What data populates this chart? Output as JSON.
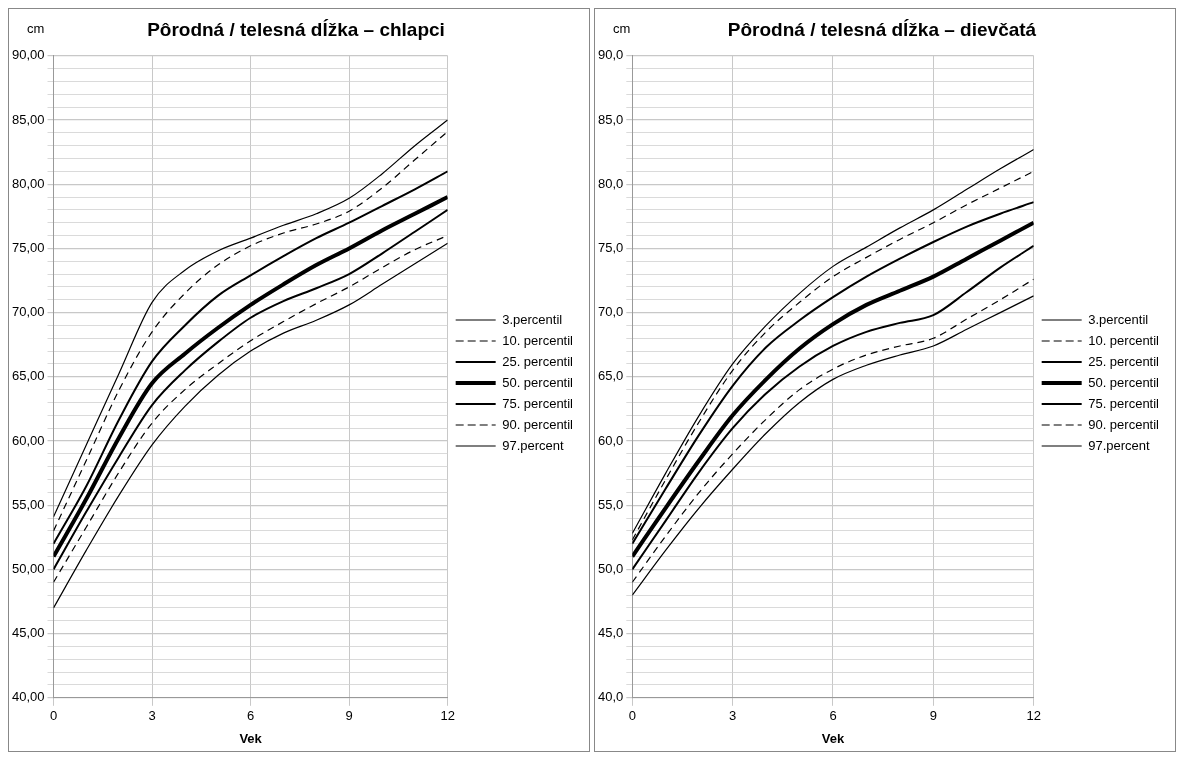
{
  "chart_data": [
    {
      "type": "line",
      "title": "Pôrodná / telesná dĺžka – chlapci",
      "xlabel": "Vek",
      "ylabel": "cm",
      "x": [
        0,
        1,
        2,
        3,
        4,
        5,
        6,
        7,
        8,
        9,
        10,
        11,
        12
      ],
      "xlim": [
        0,
        12
      ],
      "xticks": [
        0,
        3,
        6,
        9,
        12
      ],
      "ylim": [
        40,
        90
      ],
      "yticks": [
        {
          "value": 40,
          "label": "40,00"
        },
        {
          "value": 41,
          "label": null
        },
        {
          "value": 42,
          "label": null
        },
        {
          "value": 43,
          "label": null
        },
        {
          "value": 44,
          "label": null
        },
        {
          "value": 45,
          "label": "45,00"
        },
        {
          "value": 46,
          "label": null
        },
        {
          "value": 47,
          "label": null
        },
        {
          "value": 48,
          "label": null
        },
        {
          "value": 49,
          "label": null
        },
        {
          "value": 50,
          "label": "50,00"
        },
        {
          "value": 51,
          "label": null
        },
        {
          "value": 52,
          "label": null
        },
        {
          "value": 53,
          "label": null
        },
        {
          "value": 54,
          "label": null
        },
        {
          "value": 55,
          "label": "55,00"
        },
        {
          "value": 56,
          "label": null
        },
        {
          "value": 57,
          "label": null
        },
        {
          "value": 58,
          "label": null
        },
        {
          "value": 59,
          "label": null
        },
        {
          "value": 60,
          "label": "60,00"
        },
        {
          "value": 61,
          "label": null
        },
        {
          "value": 62,
          "label": null
        },
        {
          "value": 63,
          "label": null
        },
        {
          "value": 64,
          "label": null
        },
        {
          "value": 65,
          "label": "65,00"
        },
        {
          "value": 66,
          "label": null
        },
        {
          "value": 67,
          "label": null
        },
        {
          "value": 68,
          "label": null
        },
        {
          "value": 69,
          "label": null
        },
        {
          "value": 70,
          "label": "70,00"
        },
        {
          "value": 71,
          "label": null
        },
        {
          "value": 72,
          "label": null
        },
        {
          "value": 73,
          "label": null
        },
        {
          "value": 74,
          "label": null
        },
        {
          "value": 75,
          "label": "75,00"
        },
        {
          "value": 76,
          "label": null
        },
        {
          "value": 77,
          "label": null
        },
        {
          "value": 78,
          "label": null
        },
        {
          "value": 79,
          "label": null
        },
        {
          "value": 80,
          "label": "80,00"
        },
        {
          "value": 81,
          "label": null
        },
        {
          "value": 82,
          "label": null
        },
        {
          "value": 83,
          "label": null
        },
        {
          "value": 84,
          "label": null
        },
        {
          "value": 85,
          "label": "85,00"
        },
        {
          "value": 86,
          "label": null
        },
        {
          "value": 87,
          "label": null
        },
        {
          "value": 88,
          "label": null
        },
        {
          "value": 89,
          "label": null
        },
        {
          "value": 90,
          "label": "90,00"
        }
      ],
      "grid": true,
      "legend": "right",
      "marker": "none",
      "series": [
        {
          "name": "3.percentil",
          "color": "#000000",
          "line_style": "solid",
          "values": [
            47,
            51.5,
            55.8,
            59.7,
            62.7,
            65.1,
            67,
            68.4,
            69.4,
            70.6,
            72.2,
            73.8,
            75.4
          ]
        },
        {
          "name": "10. percentil",
          "color": "#000000",
          "line_style": "dashed",
          "values": [
            49,
            53.3,
            57.6,
            61.4,
            64,
            66,
            67.8,
            69.3,
            70.7,
            72,
            73.5,
            74.9,
            76
          ]
        },
        {
          "name": "25. percentil",
          "color": "#000000",
          "line_style": "solid",
          "values": [
            50,
            54.5,
            58.8,
            62.8,
            65.5,
            67.7,
            69.6,
            70.9,
            71.9,
            73,
            74.6,
            76.3,
            78
          ]
        },
        {
          "name": "50. percentil",
          "color": "#000000",
          "line_style": "solid",
          "values": [
            51,
            55.5,
            60.3,
            64.5,
            66.8,
            68.8,
            70.6,
            72.2,
            73.7,
            75,
            76.4,
            77.7,
            79
          ]
        },
        {
          "name": "75. percentil",
          "color": "#000000",
          "line_style": "solid",
          "values": [
            52,
            56.5,
            61.7,
            66.2,
            69,
            71.3,
            72.9,
            74.4,
            75.8,
            77,
            78.3,
            79.6,
            81
          ]
        },
        {
          "name": "90. percentil",
          "color": "#000000",
          "line_style": "dashed",
          "values": [
            53,
            58.5,
            64,
            68.5,
            71.5,
            73.7,
            75.2,
            76.2,
            76.9,
            77.9,
            79.7,
            81.9,
            84.1
          ]
        },
        {
          "name": "97.percent",
          "color": "#000000",
          "line_style": "solid",
          "values": [
            54.1,
            59.7,
            65.3,
            70.8,
            73.3,
            74.8,
            75.8,
            76.8,
            77.7,
            78.9,
            80.8,
            83,
            85
          ]
        }
      ]
    },
    {
      "type": "line",
      "title": "Pôrodná / telesná dĺžka – dievčatá",
      "xlabel": "Vek",
      "ylabel": "cm",
      "x": [
        0,
        1,
        2,
        3,
        4,
        5,
        6,
        7,
        8,
        9,
        10,
        11,
        12
      ],
      "xlim": [
        0,
        12
      ],
      "xticks": [
        0,
        3,
        6,
        9,
        12
      ],
      "ylim": [
        40,
        90
      ],
      "yticks": [
        {
          "value": 40,
          "label": "40,0"
        },
        {
          "value": 41,
          "label": null
        },
        {
          "value": 42,
          "label": null
        },
        {
          "value": 43,
          "label": null
        },
        {
          "value": 44,
          "label": null
        },
        {
          "value": 45,
          "label": "45,0"
        },
        {
          "value": 46,
          "label": null
        },
        {
          "value": 47,
          "label": null
        },
        {
          "value": 48,
          "label": null
        },
        {
          "value": 49,
          "label": null
        },
        {
          "value": 50,
          "label": "50,0"
        },
        {
          "value": 51,
          "label": null
        },
        {
          "value": 52,
          "label": null
        },
        {
          "value": 53,
          "label": null
        },
        {
          "value": 54,
          "label": null
        },
        {
          "value": 55,
          "label": "55,0"
        },
        {
          "value": 56,
          "label": null
        },
        {
          "value": 57,
          "label": null
        },
        {
          "value": 58,
          "label": null
        },
        {
          "value": 59,
          "label": null
        },
        {
          "value": 60,
          "label": "60,0"
        },
        {
          "value": 61,
          "label": null
        },
        {
          "value": 62,
          "label": null
        },
        {
          "value": 63,
          "label": null
        },
        {
          "value": 64,
          "label": null
        },
        {
          "value": 65,
          "label": "65,0"
        },
        {
          "value": 66,
          "label": null
        },
        {
          "value": 67,
          "label": null
        },
        {
          "value": 68,
          "label": null
        },
        {
          "value": 69,
          "label": null
        },
        {
          "value": 70,
          "label": "70,0"
        },
        {
          "value": 71,
          "label": null
        },
        {
          "value": 72,
          "label": null
        },
        {
          "value": 73,
          "label": null
        },
        {
          "value": 74,
          "label": null
        },
        {
          "value": 75,
          "label": "75,0"
        },
        {
          "value": 76,
          "label": null
        },
        {
          "value": 77,
          "label": null
        },
        {
          "value": 78,
          "label": null
        },
        {
          "value": 79,
          "label": null
        },
        {
          "value": 80,
          "label": "80,0"
        },
        {
          "value": 81,
          "label": null
        },
        {
          "value": 82,
          "label": null
        },
        {
          "value": 83,
          "label": null
        },
        {
          "value": 84,
          "label": null
        },
        {
          "value": 85,
          "label": "85,0"
        },
        {
          "value": 86,
          "label": null
        },
        {
          "value": 87,
          "label": null
        },
        {
          "value": 88,
          "label": null
        },
        {
          "value": 89,
          "label": null
        },
        {
          "value": 90,
          "label": "90,0"
        }
      ],
      "grid": true,
      "legend": "right",
      "marker": "none",
      "series": [
        {
          "name": "3.percentil",
          "color": "#000000",
          "line_style": "solid",
          "values": [
            48,
            51.5,
            54.8,
            57.8,
            60.6,
            63,
            64.8,
            65.9,
            66.7,
            67.4,
            68.7,
            70,
            71.3
          ]
        },
        {
          "name": "10. percentil",
          "color": "#000000",
          "line_style": "dashed",
          "values": [
            49,
            52.6,
            56,
            59,
            61.7,
            64,
            65.6,
            66.7,
            67.4,
            68,
            69.5,
            71,
            72.6
          ]
        },
        {
          "name": "25. percentil",
          "color": "#000000",
          "line_style": "solid",
          "values": [
            50,
            53.8,
            57.6,
            61,
            63.7,
            65.8,
            67.4,
            68.5,
            69.2,
            69.8,
            71.6,
            73.5,
            75.2
          ]
        },
        {
          "name": "50. percentil",
          "color": "#000000",
          "line_style": "solid",
          "values": [
            51,
            54.8,
            58.5,
            62,
            64.8,
            67.2,
            69.1,
            70.6,
            71.7,
            72.8,
            74.2,
            75.6,
            77
          ]
        },
        {
          "name": "75. percentil",
          "color": "#000000",
          "line_style": "solid",
          "values": [
            52,
            56.3,
            60.5,
            64.3,
            67.3,
            69.4,
            71.2,
            72.8,
            74.2,
            75.5,
            76.7,
            77.7,
            78.6
          ]
        },
        {
          "name": "90. percentil",
          "color": "#000000",
          "line_style": "dashed",
          "values": [
            52.3,
            57,
            61.5,
            65.5,
            68.5,
            70.8,
            72.8,
            74.3,
            75.7,
            77,
            78.4,
            79.7,
            81
          ]
        },
        {
          "name": "97.percent",
          "color": "#000000",
          "line_style": "solid",
          "values": [
            52.8,
            57.5,
            62,
            66,
            69,
            71.5,
            73.6,
            75.1,
            76.6,
            78,
            79.6,
            81.2,
            82.7
          ]
        }
      ]
    }
  ]
}
